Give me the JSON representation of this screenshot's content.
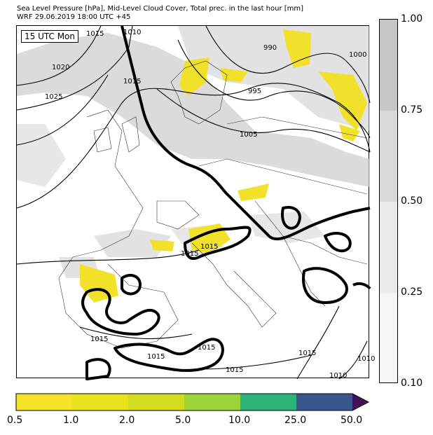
{
  "header": {
    "line1": "Sea Level Pressure [hPa], Mid-Level Cloud Cover, Total prec. in the last hour [mm]",
    "line2": "WRF 29.06.2019 18:00 UTC +45"
  },
  "map": {
    "time_label": "15 UTC Mon",
    "isobar_labels": [
      "1015",
      "1010",
      "1020",
      "1025",
      "1015",
      "990",
      "995",
      "1000",
      "1005",
      "1015",
      "1015",
      "1015",
      "1015",
      "1015",
      "1015",
      "1015",
      "1010",
      "1010"
    ]
  },
  "cloud_colorbar": {
    "labels": [
      "1.00",
      "0.75",
      "0.50",
      "0.25",
      "0.10"
    ],
    "colors": [
      "#c6c6c6",
      "#dadada",
      "#eaeaea",
      "#f5f5f5"
    ]
  },
  "precip_colorbar": {
    "labels": [
      "0.5",
      "1.0",
      "2.0",
      "5.0",
      "10.0",
      "25.0",
      "50.0"
    ],
    "colors": [
      "#f7e22a",
      "#e8e21d",
      "#d2dc1e",
      "#9cd53a",
      "#2db37a",
      "#3b558d",
      "#45115c"
    ]
  }
}
